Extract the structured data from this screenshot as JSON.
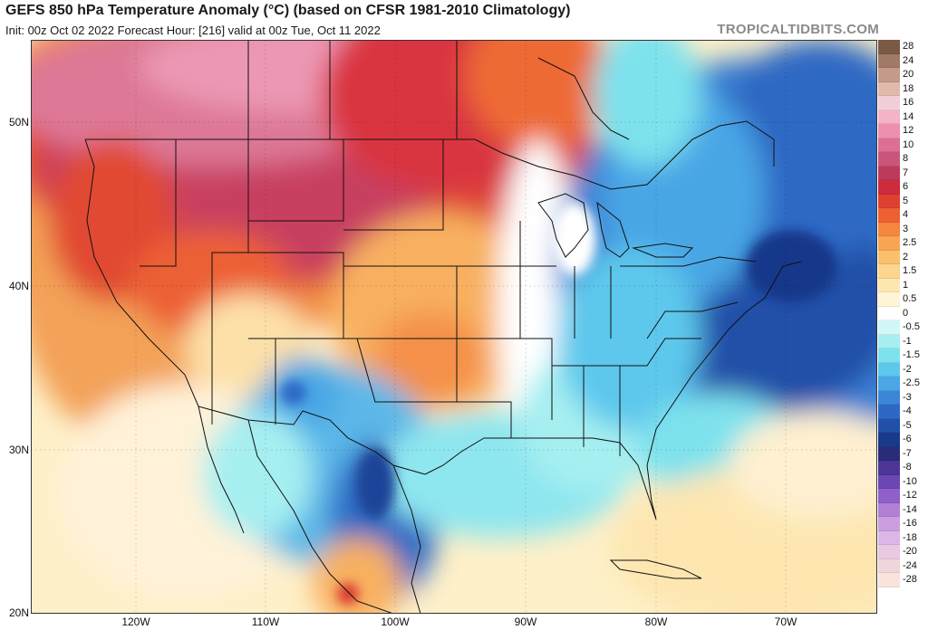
{
  "header": {
    "title": "GEFS 850 hPa Temperature Anomaly (°C) (based on CFSR 1981-2010 Climatology)",
    "subtitle": "Init: 00z Oct 02 2022   Forecast Hour: [216]   valid at 00z Tue, Oct 11 2022",
    "brand": "TROPICALTIDBITS.COM"
  },
  "axes": {
    "lat_labels": [
      "50N",
      "40N",
      "30N",
      "20N"
    ],
    "lon_labels": [
      "120W",
      "110W",
      "100W",
      "90W",
      "80W",
      "70W"
    ]
  },
  "colorbar": {
    "levels": [
      {
        "label": "28",
        "color": "#7b5a45"
      },
      {
        "label": "24",
        "color": "#a17a66"
      },
      {
        "label": "20",
        "color": "#c49a8a"
      },
      {
        "label": "18",
        "color": "#e0b9ad"
      },
      {
        "label": "16",
        "color": "#f1cfd6"
      },
      {
        "label": "14",
        "color": "#f5b3c8"
      },
      {
        "label": "12",
        "color": "#ee8fb0"
      },
      {
        "label": "10",
        "color": "#dc6f93"
      },
      {
        "label": "8",
        "color": "#c9567a"
      },
      {
        "label": "7",
        "color": "#bd3a5c"
      },
      {
        "label": "6",
        "color": "#cc2c3c"
      },
      {
        "label": "5",
        "color": "#e0402f"
      },
      {
        "label": "4",
        "color": "#ec6034"
      },
      {
        "label": "3",
        "color": "#f4863f"
      },
      {
        "label": "2.5",
        "color": "#f8a552"
      },
      {
        "label": "2",
        "color": "#fbc06e"
      },
      {
        "label": "1.5",
        "color": "#fcd58e"
      },
      {
        "label": "1",
        "color": "#fde6b0"
      },
      {
        "label": "0.5",
        "color": "#fef4d6"
      },
      {
        "label": "0",
        "color": "#ffffff"
      },
      {
        "label": "-0.5",
        "color": "#d2f7f7"
      },
      {
        "label": "-1",
        "color": "#a6eff1"
      },
      {
        "label": "-1.5",
        "color": "#7ee2ed"
      },
      {
        "label": "-2",
        "color": "#5dc8ec"
      },
      {
        "label": "-2.5",
        "color": "#4aa6e5"
      },
      {
        "label": "-3",
        "color": "#3b86d6"
      },
      {
        "label": "-4",
        "color": "#2d69c4"
      },
      {
        "label": "-5",
        "color": "#2050a8"
      },
      {
        "label": "-6",
        "color": "#19398a"
      },
      {
        "label": "-7",
        "color": "#2a2c7a"
      },
      {
        "label": "-8",
        "color": "#4c3596"
      },
      {
        "label": "-10",
        "color": "#6c46b4"
      },
      {
        "label": "-12",
        "color": "#9060c8"
      },
      {
        "label": "-14",
        "color": "#b27fd6"
      },
      {
        "label": "-16",
        "color": "#cc9ee0"
      },
      {
        "label": "-18",
        "color": "#dcb6e6"
      },
      {
        "label": "-20",
        "color": "#e9c8e2"
      },
      {
        "label": "-24",
        "color": "#f0d6da"
      },
      {
        "label": "-28",
        "color": "#f8e4dc"
      }
    ]
  }
}
